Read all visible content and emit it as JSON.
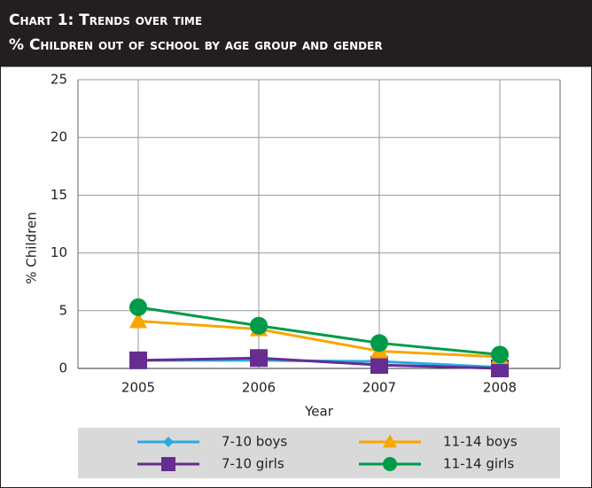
{
  "chart_data": {
    "type": "line",
    "title": "Chart 1: Trends over time",
    "subtitle": "% Children out of school by age group and gender",
    "x_label": "Year",
    "y_label": "% Children",
    "categories": [
      "2005",
      "2006",
      "2007",
      "2008"
    ],
    "series": [
      {
        "name": "7-10 boys",
        "color": "#29abe2",
        "marker": "diamond",
        "values": [
          0.7,
          0.7,
          0.6,
          0.1
        ]
      },
      {
        "name": "7-10 girls",
        "color": "#662d91",
        "marker": "square",
        "values": [
          0.7,
          0.9,
          0.3,
          0.0
        ]
      },
      {
        "name": "11-14 boys",
        "color": "#f7a600",
        "marker": "triangle",
        "values": [
          4.1,
          3.4,
          1.5,
          1.0
        ]
      },
      {
        "name": "11-14 girls",
        "color": "#009b48",
        "marker": "circle",
        "values": [
          5.3,
          3.7,
          2.2,
          1.2
        ]
      }
    ],
    "ylim": [
      0,
      25
    ],
    "yticks": [
      0,
      5,
      10,
      15,
      20,
      25
    ],
    "grid": true
  }
}
